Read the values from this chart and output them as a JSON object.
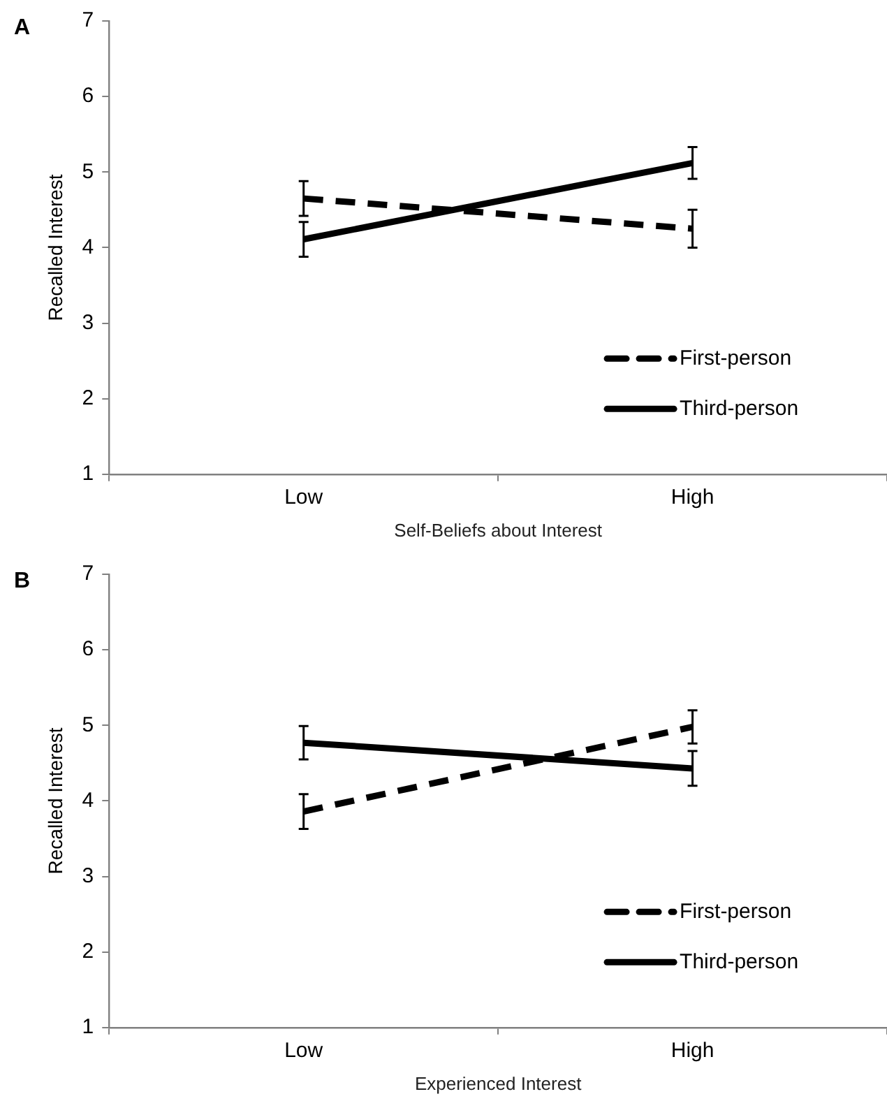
{
  "chart_data": [
    {
      "type": "line",
      "annotations": [
        "A"
      ],
      "xlabel": "Self-Beliefs about Interest",
      "ylabel": "Recalled Interest",
      "categories": [
        "Low",
        "High"
      ],
      "ylim": [
        1,
        7
      ],
      "yticks": [
        1,
        2,
        3,
        4,
        5,
        6,
        7
      ],
      "grid": false,
      "legend": "bottom right",
      "marker": "none",
      "series": [
        {
          "name": "First-person",
          "color": "#000000",
          "line_style": "dashed",
          "values": [
            4.65,
            4.25
          ],
          "errors": [
            0.23,
            0.25
          ]
        },
        {
          "name": "Third-person",
          "color": "#000000",
          "line_style": "solid",
          "values": [
            4.11,
            5.12
          ],
          "errors": [
            0.23,
            0.21
          ]
        }
      ]
    },
    {
      "type": "line",
      "annotations": [
        "B"
      ],
      "xlabel": "Experienced Interest",
      "ylabel": "Recalled Interest",
      "categories": [
        "Low",
        "High"
      ],
      "ylim": [
        1,
        7
      ],
      "yticks": [
        1,
        2,
        3,
        4,
        5,
        6,
        7
      ],
      "grid": false,
      "legend": "bottom right",
      "marker": "none",
      "series": [
        {
          "name": "First-person",
          "color": "#000000",
          "line_style": "dashed",
          "values": [
            3.86,
            4.98
          ],
          "errors": [
            0.23,
            0.22
          ]
        },
        {
          "name": "Third-person",
          "color": "#000000",
          "line_style": "solid",
          "values": [
            4.77,
            4.43
          ],
          "errors": [
            0.22,
            0.23
          ]
        }
      ]
    }
  ]
}
